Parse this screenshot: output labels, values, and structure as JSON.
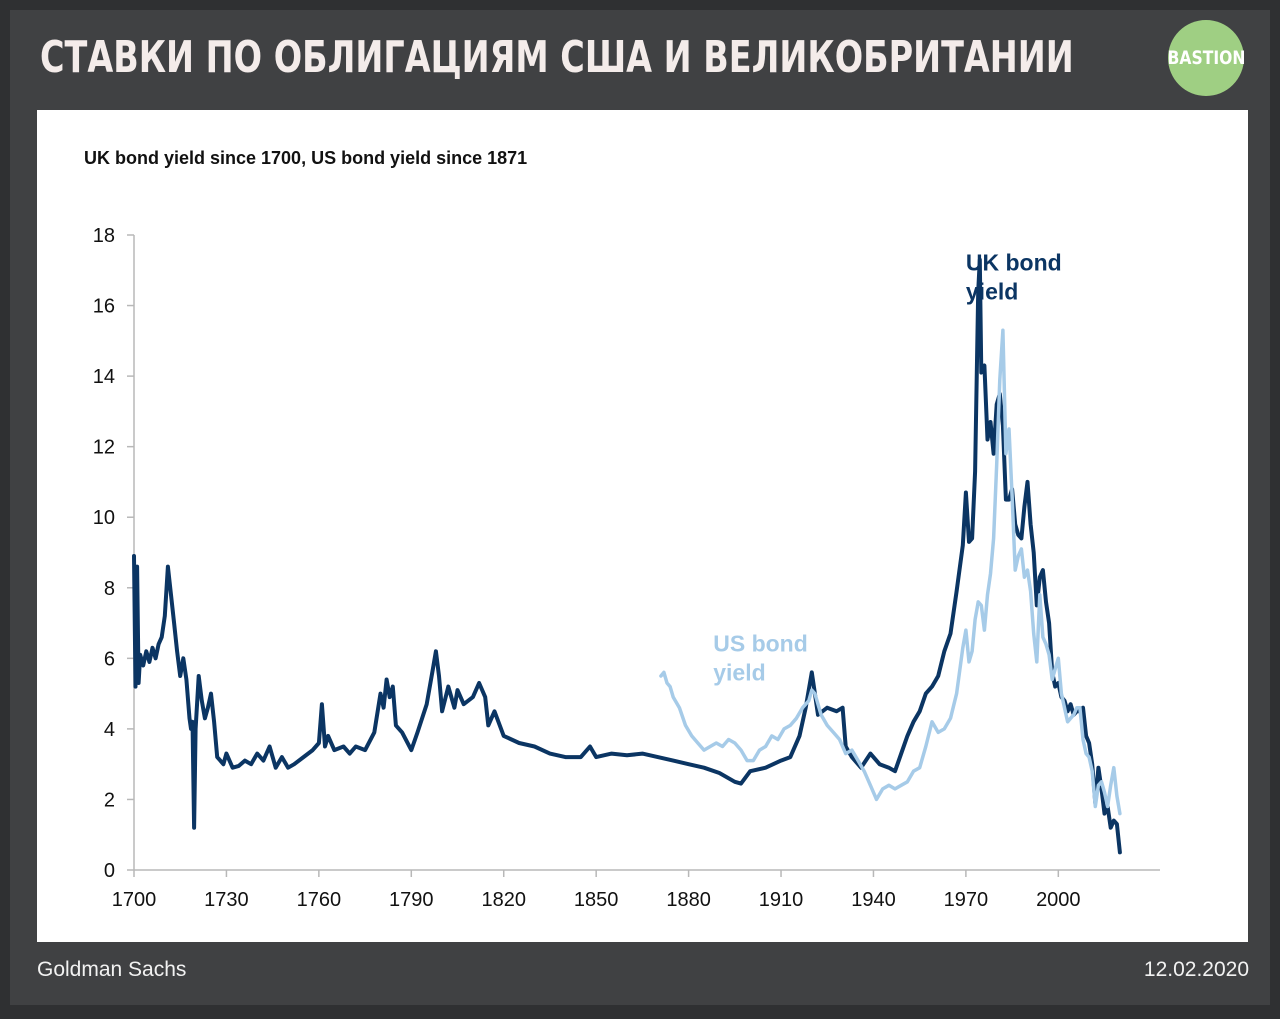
{
  "header": {
    "title": "СТАВКИ ПО ОБЛИГАЦИЯМ США И ВЕЛИКОБРИТАНИИ",
    "logo_text": "BASTION"
  },
  "footer": {
    "source": "Goldman Sachs",
    "date": "12.02.2020"
  },
  "colors": {
    "uk": "#0b3563",
    "us": "#a6cbe8",
    "background": "#404143",
    "logo": "#9fcf83"
  },
  "chart_data": {
    "type": "line",
    "title": "UK bond yield since 1700, US bond yield since 1871",
    "xlabel": "",
    "ylabel": "",
    "xlim": [
      1700,
      2033
    ],
    "ylim": [
      0,
      18
    ],
    "xticks": [
      1700,
      1730,
      1760,
      1790,
      1820,
      1850,
      1880,
      1910,
      1940,
      1970,
      2000
    ],
    "yticks": [
      0,
      2,
      4,
      6,
      8,
      10,
      12,
      14,
      16,
      18
    ],
    "grid": false,
    "annotations": [
      {
        "text": [
          "UK bond",
          "yield"
        ],
        "x": 1970,
        "y": 17,
        "series": "uk"
      },
      {
        "text": [
          "US bond",
          "yield"
        ],
        "x": 1888,
        "y": 6.2,
        "series": "us"
      }
    ],
    "series": [
      {
        "key": "uk",
        "x": [
          1700,
          1700.5,
          1701,
          1701.5,
          1702,
          1703,
          1704,
          1705,
          1706,
          1707,
          1708,
          1709,
          1710,
          1711,
          1712,
          1713,
          1714,
          1715,
          1716,
          1717,
          1718,
          1718.5,
          1719,
          1719.5,
          1720,
          1721,
          1722,
          1723,
          1724,
          1725,
          1726,
          1727,
          1728,
          1729,
          1730,
          1732,
          1734,
          1736,
          1738,
          1740,
          1742,
          1744,
          1746,
          1748,
          1750,
          1752,
          1755,
          1758,
          1760,
          1761,
          1762,
          1763,
          1765,
          1768,
          1770,
          1772,
          1775,
          1778,
          1780,
          1781,
          1782,
          1783,
          1784,
          1785,
          1787,
          1790,
          1792,
          1795,
          1797,
          1798,
          1799,
          1800,
          1802,
          1804,
          1805,
          1807,
          1810,
          1812,
          1814,
          1815,
          1817,
          1820,
          1825,
          1830,
          1835,
          1840,
          1845,
          1848,
          1850,
          1855,
          1860,
          1865,
          1870,
          1875,
          1880,
          1885,
          1890,
          1895,
          1897,
          1900,
          1905,
          1910,
          1913,
          1916,
          1918,
          1920,
          1921,
          1922,
          1925,
          1928,
          1930,
          1931,
          1933,
          1936,
          1939,
          1942,
          1945,
          1947,
          1949,
          1951,
          1953,
          1955,
          1957,
          1959,
          1961,
          1963,
          1965,
          1967,
          1969,
          1970,
          1971,
          1972,
          1973,
          1974,
          1974.5,
          1975,
          1976,
          1977,
          1978,
          1979,
          1980,
          1981,
          1982,
          1983,
          1984,
          1985,
          1986,
          1987,
          1988,
          1989,
          1990,
          1991,
          1992,
          1993,
          1994,
          1995,
          1996,
          1997,
          1998,
          1999,
          2000,
          2001,
          2002,
          2003,
          2004,
          2005,
          2006,
          2007,
          2008,
          2009,
          2010,
          2011,
          2012,
          2013,
          2014,
          2015,
          2016,
          2017,
          2018,
          2019,
          2020
        ],
        "values": [
          8.9,
          5.2,
          8.6,
          5.3,
          6.1,
          5.8,
          6.2,
          5.9,
          6.3,
          6.0,
          6.4,
          6.6,
          7.2,
          8.6,
          7.8,
          7.0,
          6.2,
          5.5,
          6.0,
          5.4,
          4.3,
          4.0,
          4.2,
          1.2,
          4.0,
          5.5,
          4.8,
          4.3,
          4.6,
          5.0,
          4.2,
          3.2,
          3.1,
          3.0,
          3.3,
          2.9,
          2.95,
          3.1,
          3.0,
          3.3,
          3.1,
          3.5,
          2.9,
          3.2,
          2.9,
          3.0,
          3.2,
          3.4,
          3.6,
          4.7,
          3.5,
          3.8,
          3.4,
          3.5,
          3.3,
          3.5,
          3.4,
          3.9,
          5.0,
          4.6,
          5.4,
          4.9,
          5.2,
          4.1,
          3.9,
          3.4,
          3.9,
          4.7,
          5.7,
          6.2,
          5.5,
          4.5,
          5.2,
          4.6,
          5.1,
          4.7,
          4.9,
          5.3,
          4.9,
          4.1,
          4.5,
          3.8,
          3.6,
          3.5,
          3.3,
          3.2,
          3.2,
          3.5,
          3.2,
          3.3,
          3.25,
          3.3,
          3.2,
          3.1,
          3.0,
          2.9,
          2.75,
          2.5,
          2.45,
          2.8,
          2.9,
          3.1,
          3.2,
          3.8,
          4.6,
          5.6,
          5.0,
          4.4,
          4.6,
          4.5,
          4.6,
          3.5,
          3.2,
          2.9,
          3.3,
          3.0,
          2.9,
          2.8,
          3.3,
          3.8,
          4.2,
          4.5,
          5.0,
          5.2,
          5.5,
          6.2,
          6.7,
          7.9,
          9.2,
          10.7,
          9.3,
          9.4,
          11.3,
          16.4,
          17.3,
          14.1,
          14.3,
          12.2,
          12.7,
          11.8,
          13.2,
          13.5,
          12.6,
          10.5,
          10.5,
          10.8,
          9.8,
          9.5,
          9.4,
          10.3,
          11.0,
          9.8,
          9.0,
          7.5,
          8.3,
          8.5,
          7.6,
          7.0,
          5.6,
          5.2,
          5.3,
          4.9,
          4.8,
          4.5,
          4.7,
          4.4,
          4.5,
          4.5,
          4.6,
          3.8,
          3.6,
          3.0,
          1.9,
          2.9,
          2.3,
          1.6,
          1.8,
          1.2,
          1.4,
          1.3,
          0.5
        ]
      },
      {
        "key": "us",
        "x": [
          1871,
          1872,
          1873,
          1874,
          1875,
          1877,
          1879,
          1881,
          1883,
          1885,
          1887,
          1889,
          1891,
          1893,
          1895,
          1897,
          1899,
          1901,
          1903,
          1905,
          1907,
          1909,
          1911,
          1913,
          1915,
          1917,
          1919,
          1920,
          1921,
          1923,
          1925,
          1927,
          1929,
          1931,
          1933,
          1935,
          1937,
          1939,
          1941,
          1943,
          1945,
          1947,
          1949,
          1951,
          1953,
          1955,
          1957,
          1959,
          1961,
          1963,
          1965,
          1967,
          1969,
          1970,
          1971,
          1972,
          1973,
          1974,
          1975,
          1976,
          1977,
          1978,
          1979,
          1980,
          1981,
          1982,
          1983,
          1984,
          1985,
          1986,
          1987,
          1988,
          1989,
          1990,
          1991,
          1992,
          1993,
          1994,
          1995,
          1996,
          1997,
          1998,
          1999,
          2000,
          2001,
          2002,
          2003,
          2004,
          2005,
          2006,
          2007,
          2008,
          2009,
          2010,
          2011,
          2012,
          2013,
          2014,
          2015,
          2016,
          2017,
          2018,
          2019,
          2020
        ],
        "values": [
          5.5,
          5.6,
          5.3,
          5.2,
          4.9,
          4.6,
          4.1,
          3.8,
          3.6,
          3.4,
          3.5,
          3.6,
          3.5,
          3.7,
          3.6,
          3.4,
          3.1,
          3.1,
          3.4,
          3.5,
          3.8,
          3.7,
          4.0,
          4.1,
          4.3,
          4.6,
          4.8,
          5.1,
          5.0,
          4.4,
          4.1,
          3.9,
          3.7,
          3.3,
          3.4,
          3.1,
          2.8,
          2.4,
          2.0,
          2.3,
          2.4,
          2.3,
          2.4,
          2.5,
          2.8,
          2.9,
          3.5,
          4.2,
          3.9,
          4.0,
          4.3,
          5.0,
          6.3,
          6.8,
          5.9,
          6.2,
          7.1,
          7.6,
          7.5,
          6.8,
          7.8,
          8.4,
          9.4,
          11.5,
          13.9,
          15.3,
          11.8,
          12.5,
          10.6,
          8.5,
          8.9,
          9.1,
          8.3,
          8.5,
          7.9,
          6.7,
          5.9,
          7.8,
          6.6,
          6.4,
          6.1,
          5.4,
          5.7,
          6.0,
          5.0,
          4.6,
          4.2,
          4.3,
          4.4,
          4.6,
          4.6,
          3.7,
          3.3,
          3.2,
          2.8,
          1.8,
          2.4,
          2.5,
          2.2,
          1.8,
          2.4,
          2.9,
          2.1,
          1.6
        ]
      }
    ]
  }
}
